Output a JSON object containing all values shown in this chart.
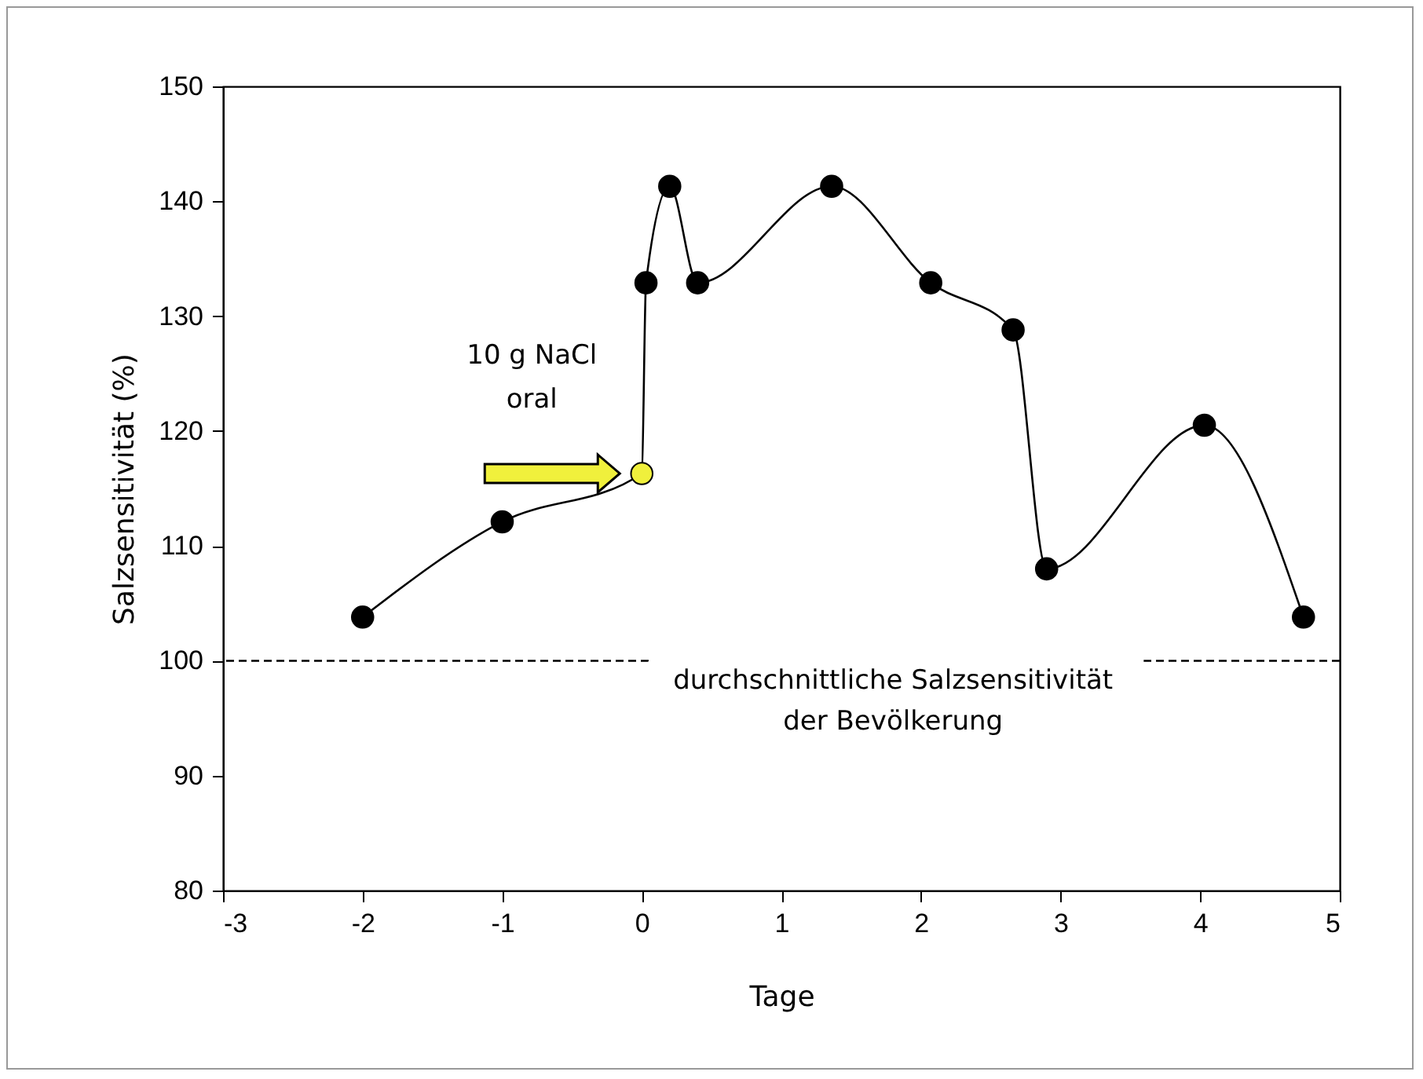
{
  "chart_data": {
    "type": "line",
    "xlabel": "Tage",
    "ylabel": "Salzsensitivität (%)",
    "xlim": [
      -3,
      5
    ],
    "xticks": [
      -3,
      -2,
      -1,
      0,
      1,
      2,
      3,
      4,
      5
    ],
    "ylim": [
      80,
      150
    ],
    "yticks": [
      80,
      90,
      100,
      110,
      120,
      130,
      140,
      150
    ],
    "grid": false,
    "marker": "circle",
    "line_style": "solid",
    "series": [
      {
        "color": "#000000",
        "x": [
          -2,
          -1,
          0,
          0.03,
          0.2,
          0.4,
          1.36,
          2.07,
          2.66,
          2.9,
          4.03,
          4.74
        ],
        "values": [
          103.8,
          112.1,
          116.3,
          132.9,
          141.3,
          132.9,
          141.3,
          132.9,
          128.8,
          108.0,
          120.5,
          103.8
        ],
        "colors": [
          "#000000",
          "#000000",
          "#f0f03c",
          "#000000",
          "#000000",
          "#000000",
          "#000000",
          "#000000",
          "#000000",
          "#000000",
          "#000000",
          "#000000"
        ]
      }
    ],
    "ref_lines": [
      {
        "axis": "y",
        "value": 100,
        "label": "durchschnittliche Salzsensitivität\nder Bevölkerung",
        "line_style": "dashed",
        "color": "#000000"
      }
    ],
    "annotations": [
      {
        "text": "10 g NaCl\noral",
        "x": 0,
        "y": 116.3
      }
    ]
  }
}
